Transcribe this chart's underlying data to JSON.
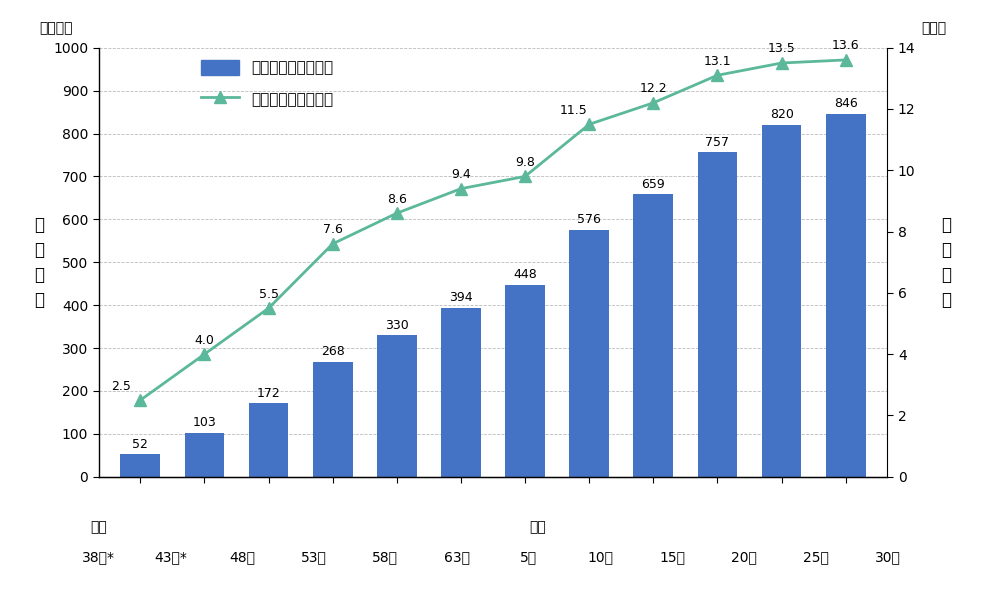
{
  "bar_values": [
    52,
    103,
    172,
    268,
    330,
    394,
    448,
    576,
    659,
    757,
    820,
    846
  ],
  "line_values": [
    2.5,
    4.0,
    5.5,
    7.6,
    8.6,
    9.4,
    9.8,
    11.5,
    12.2,
    13.1,
    13.5,
    13.6
  ],
  "bar_labels": [
    "52",
    "103",
    "172",
    "268",
    "330",
    "394",
    "448",
    "576",
    "659",
    "757",
    "820",
    "846"
  ],
  "line_labels": [
    "2.5",
    "4.0",
    "5.5",
    "7.6",
    "8.6",
    "9.4",
    "9.8",
    "11.5",
    "12.2",
    "13.1",
    "13.5",
    "13.6"
  ],
  "bar_color": "#4472C4",
  "line_color": "#5BB89A",
  "ylabel_left": "空\nき\n家\n数",
  "ylabel_right": "空\nき\n家\n率",
  "ylabel_left_top": "（万戸）",
  "ylabel_right_top": "（％）",
  "legend_bar": "空き家数（左目盛）",
  "legend_line": "空き家率（右目盛）",
  "ylim_left": [
    0,
    1000
  ],
  "ylim_right": [
    0,
    14
  ],
  "yticks_left": [
    0,
    100,
    200,
    300,
    400,
    500,
    600,
    700,
    800,
    900,
    1000
  ],
  "yticks_right": [
    0,
    2,
    4,
    6,
    8,
    10,
    12,
    14
  ],
  "background_color": "#FFFFFF",
  "era_label_1": "昭和",
  "era_label_2": "平成",
  "xticklabels_row2": [
    "38年*",
    "43年*",
    "48年",
    "53年",
    "58年",
    "63年",
    "5年",
    "10年",
    "15年",
    "20年",
    "25年",
    "30年"
  ],
  "line_label_offsets_x": [
    -0.3,
    0.0,
    0.0,
    0.0,
    0.0,
    0.0,
    0.0,
    -0.25,
    0.0,
    0.0,
    0.0,
    0.0
  ]
}
